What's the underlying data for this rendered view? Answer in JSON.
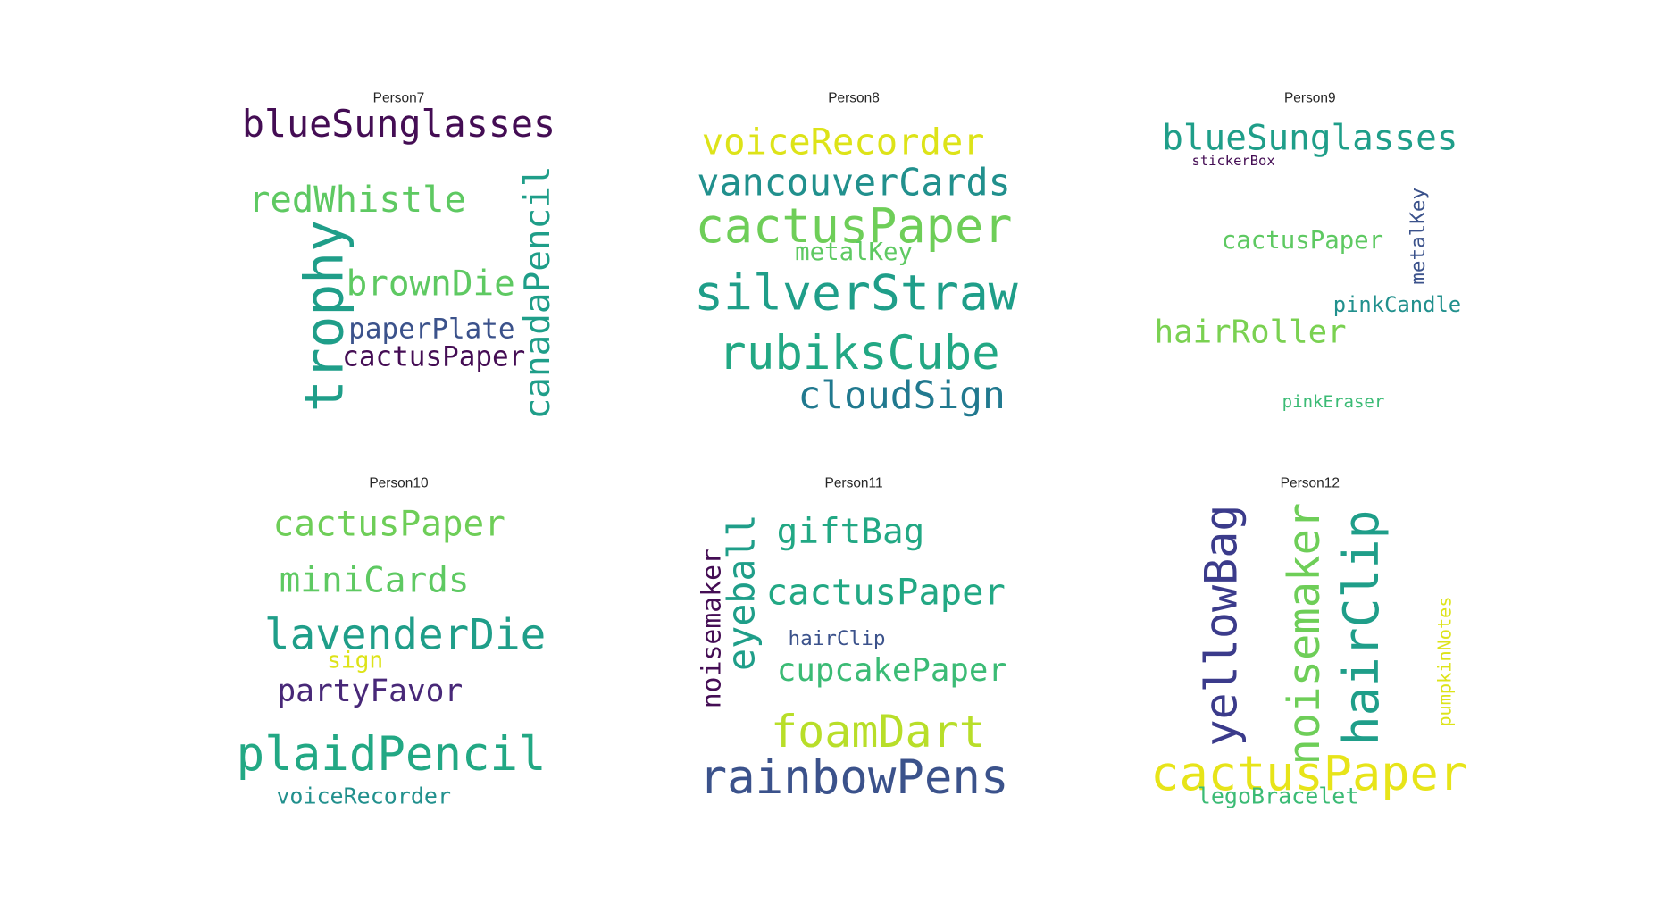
{
  "panels": [
    {
      "title": "Person7",
      "words": [
        {
          "text": "blueSunglasses",
          "color": "#440d54"
        },
        {
          "text": "redWhistle",
          "color": "#5ec962"
        },
        {
          "text": "trophy",
          "color": "#1f9e89"
        },
        {
          "text": "brownDie",
          "color": "#5ec962"
        },
        {
          "text": "canadaPencil",
          "color": "#1f9e89"
        },
        {
          "text": "paperPlate",
          "color": "#3b528b"
        },
        {
          "text": "cactusPaper",
          "color": "#440d54"
        }
      ]
    },
    {
      "title": "Person8",
      "words": [
        {
          "text": "voiceRecorder",
          "color": "#dde318"
        },
        {
          "text": "vancouverCards",
          "color": "#21908d"
        },
        {
          "text": "cactusPaper",
          "color": "#6ece58"
        },
        {
          "text": "metalKey",
          "color": "#5ec962"
        },
        {
          "text": "silverStraw",
          "color": "#1f9e89"
        },
        {
          "text": "rubiksCube",
          "color": "#22a884"
        },
        {
          "text": "cloudSign",
          "color": "#21798f"
        }
      ]
    },
    {
      "title": "Person9",
      "words": [
        {
          "text": "blueSunglasses",
          "color": "#1f9e89"
        },
        {
          "text": "stickerBox",
          "color": "#440d54"
        },
        {
          "text": "metalKey",
          "color": "#3b528b"
        },
        {
          "text": "cactusPaper",
          "color": "#5ec962"
        },
        {
          "text": "pinkCandle",
          "color": "#21908d"
        },
        {
          "text": "hairRoller",
          "color": "#7ad151"
        },
        {
          "text": "pinkEraser",
          "color": "#3bbb75"
        }
      ]
    },
    {
      "title": "Person10",
      "words": [
        {
          "text": "cactusPaper",
          "color": "#6ece58"
        },
        {
          "text": "miniCards",
          "color": "#5ec962"
        },
        {
          "text": "lavenderDie",
          "color": "#1f9e89"
        },
        {
          "text": "sign",
          "color": "#dde318"
        },
        {
          "text": "partyFavor",
          "color": "#482878"
        },
        {
          "text": "plaidPencil",
          "color": "#22a884"
        },
        {
          "text": "voiceRecorder",
          "color": "#21908d"
        }
      ]
    },
    {
      "title": "Person11",
      "words": [
        {
          "text": "giftBag",
          "color": "#22a884"
        },
        {
          "text": "eyeball",
          "color": "#1f9e89"
        },
        {
          "text": "noisemaker",
          "color": "#440d54"
        },
        {
          "text": "cactusPaper",
          "color": "#22a884"
        },
        {
          "text": "hairClip",
          "color": "#3b528b"
        },
        {
          "text": "cupcakePaper",
          "color": "#3bbb75"
        },
        {
          "text": "foamDart",
          "color": "#b8de29"
        },
        {
          "text": "rainbowPens",
          "color": "#3b528b"
        }
      ]
    },
    {
      "title": "Person12",
      "words": [
        {
          "text": "yellowBag",
          "color": "#3b3b8b"
        },
        {
          "text": "noisemaker",
          "color": "#6ece58"
        },
        {
          "text": "hairClip",
          "color": "#1f9e89"
        },
        {
          "text": "pumpkinNotes",
          "color": "#dde318"
        },
        {
          "text": "cactusPaper",
          "color": "#e7e419"
        },
        {
          "text": "legoBracelet",
          "color": "#3bbb75"
        }
      ]
    }
  ]
}
